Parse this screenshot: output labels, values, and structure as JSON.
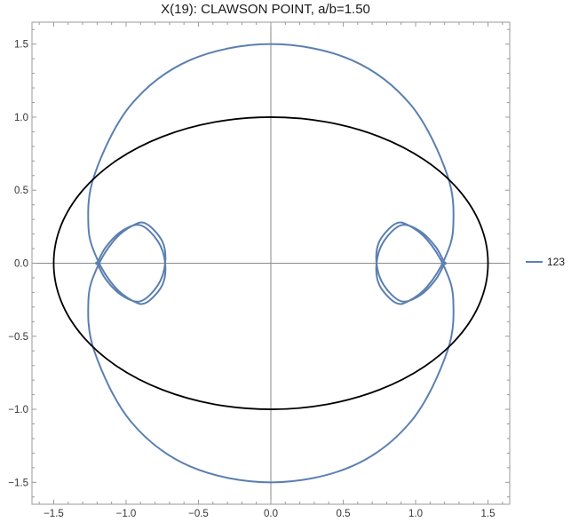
{
  "chart_data": {
    "type": "line",
    "title": "X(19): CLAWSON POINT, a/b=1.50",
    "xlabel": "",
    "ylabel": "",
    "xlim": [
      -1.65,
      1.65
    ],
    "ylim": [
      -1.65,
      1.65
    ],
    "x_ticks": [
      -1.5,
      -1.0,
      -0.5,
      0.0,
      0.5,
      1.0,
      1.5
    ],
    "x_tick_labels": [
      "−1.5",
      "−1.0",
      "−0.5",
      "0.0",
      "0.5",
      "1.0",
      "1.5"
    ],
    "y_ticks": [
      1.5,
      1.0,
      0.5,
      0.0,
      -0.5,
      -1.0,
      -1.5
    ],
    "y_tick_labels": [
      "1.5",
      "1.0",
      "0.5",
      "0.0",
      "−0.5",
      "−1.0",
      "−1.5"
    ],
    "grid": false,
    "legend_position": "right",
    "series": [
      {
        "name": "123",
        "color": "#5b7fb0",
        "x": [
          0.0,
          0.56,
          0.97,
          1.22,
          1.26,
          1.2,
          1.08,
          0.95,
          0.86,
          0.75,
          0.73,
          0.78,
          0.9,
          1.03,
          1.14,
          1.2,
          1.2,
          1.14,
          1.03,
          0.9,
          0.78,
          0.73,
          0.75,
          0.86,
          0.95,
          1.08,
          1.2,
          1.26,
          1.22,
          0.97,
          0.56,
          0.0,
          -0.56,
          -0.97,
          -1.22,
          -1.26,
          -1.2,
          -1.08,
          -0.95,
          -0.86,
          -0.75,
          -0.73,
          -0.78,
          -0.9,
          -1.03,
          -1.14,
          -1.2,
          -1.2,
          -1.14,
          -1.03,
          -0.9,
          -0.78,
          -0.73,
          -0.75,
          -0.86,
          -0.95,
          -1.08,
          -1.2,
          -1.26,
          -1.22,
          -0.97,
          -0.56,
          0.0
        ],
        "y": [
          1.5,
          1.39,
          1.08,
          0.6,
          0.25,
          0.03,
          -0.16,
          -0.26,
          -0.27,
          -0.15,
          0.0,
          0.15,
          0.26,
          0.22,
          0.11,
          0.0,
          0.0,
          -0.11,
          -0.22,
          -0.26,
          -0.15,
          0.0,
          0.15,
          0.27,
          0.26,
          0.16,
          -0.03,
          -0.25,
          -0.6,
          -1.08,
          -1.39,
          -1.5,
          -1.39,
          -1.08,
          -0.6,
          -0.25,
          -0.03,
          0.16,
          0.26,
          0.27,
          0.15,
          0.0,
          -0.15,
          -0.26,
          -0.22,
          -0.11,
          0.0,
          0.0,
          0.11,
          0.22,
          0.26,
          0.15,
          0.0,
          -0.15,
          -0.27,
          -0.26,
          -0.16,
          0.03,
          0.25,
          0.6,
          1.08,
          1.39,
          1.5
        ]
      },
      {
        "color": "#000000",
        "x": [
          1.5,
          1.449,
          1.299,
          1.061,
          0.75,
          0.388,
          0.0,
          -0.388,
          -0.75,
          -1.061,
          -1.299,
          -1.449,
          -1.5,
          -1.449,
          -1.299,
          -1.061,
          -0.75,
          -0.388,
          0.0,
          0.388,
          0.75,
          1.061,
          1.299,
          1.449,
          1.5
        ],
        "y": [
          0.0,
          0.259,
          0.5,
          0.707,
          0.866,
          0.966,
          1.0,
          0.966,
          0.866,
          0.707,
          0.5,
          0.259,
          0.0,
          -0.259,
          -0.5,
          -0.707,
          -0.866,
          -0.966,
          -1.0,
          -0.966,
          -0.866,
          -0.707,
          -0.5,
          -0.259,
          0.0
        ]
      }
    ]
  }
}
